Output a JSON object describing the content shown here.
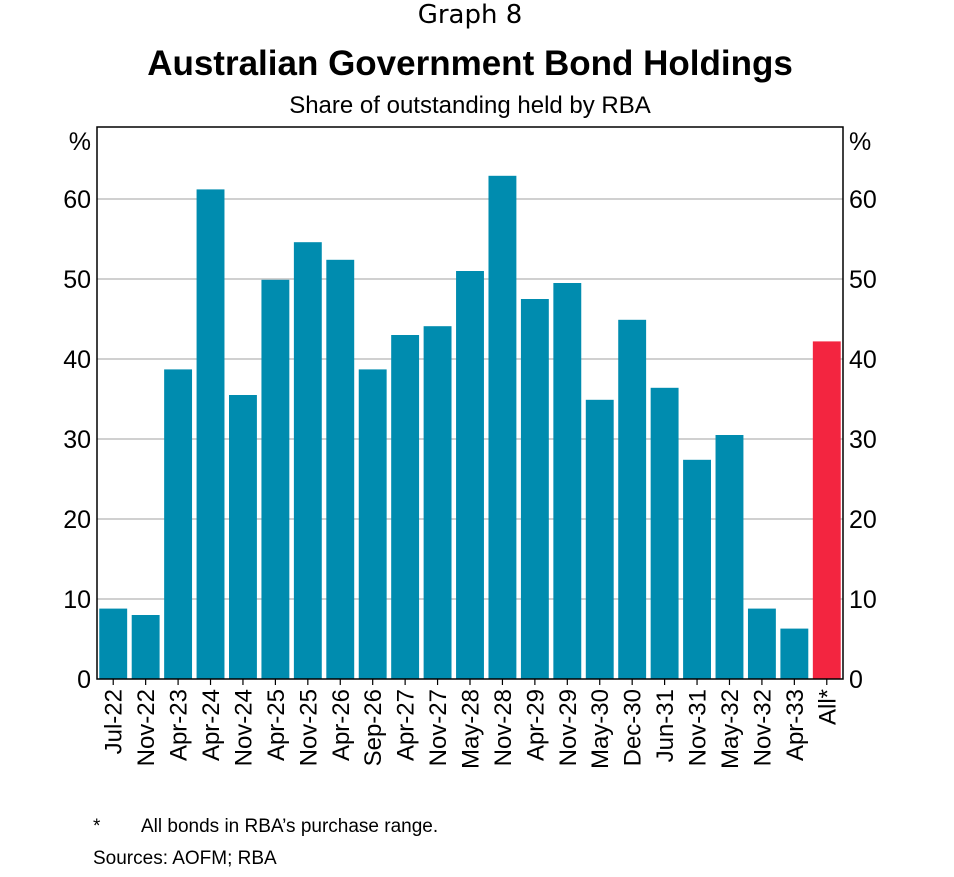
{
  "header": {
    "graph_number": "Graph 8",
    "title": "Australian Government Bond Holdings",
    "subtitle": "Share of outstanding held by RBA"
  },
  "chart_data": {
    "type": "bar",
    "title": "Australian Government Bond Holdings",
    "subtitle": "Share of outstanding held by RBA",
    "ylabel_left": "%",
    "ylabel_right": "%",
    "ylim": [
      0,
      69
    ],
    "yticks": [
      0,
      10,
      20,
      30,
      40,
      50,
      60
    ],
    "grid": true,
    "categories": [
      "Jul-22",
      "Nov-22",
      "Apr-23",
      "Apr-24",
      "Nov-24",
      "Apr-25",
      "Nov-25",
      "Apr-26",
      "Sep-26",
      "Apr-27",
      "Nov-27",
      "May-28",
      "Nov-28",
      "Apr-29",
      "Nov-29",
      "May-30",
      "Dec-30",
      "Jun-31",
      "Nov-31",
      "May-32",
      "Nov-32",
      "Apr-33",
      "All*"
    ],
    "values": [
      8.8,
      8.0,
      38.7,
      61.2,
      35.5,
      49.9,
      54.6,
      52.4,
      38.7,
      43.0,
      44.1,
      51.0,
      62.9,
      47.5,
      49.5,
      34.9,
      44.9,
      36.4,
      27.4,
      30.5,
      8.8,
      6.3,
      42.2
    ],
    "colors": {
      "bar": "#008caf",
      "highlight": "#f32540",
      "grid": "#b4b4b4"
    },
    "highlight_categories": [
      "All*"
    ]
  },
  "footnotes": {
    "star": "*",
    "note": "All bonds in RBA’s purchase range.",
    "source": "Sources: AOFM; RBA"
  }
}
